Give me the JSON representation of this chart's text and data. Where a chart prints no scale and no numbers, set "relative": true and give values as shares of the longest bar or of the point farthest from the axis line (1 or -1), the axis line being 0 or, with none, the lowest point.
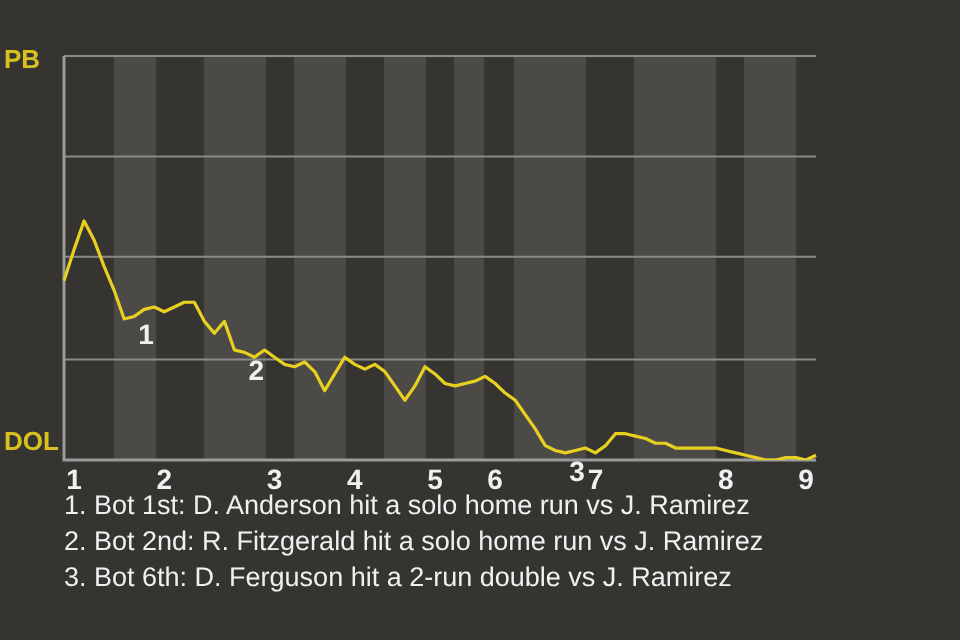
{
  "chart_data": {
    "type": "line",
    "relative": true,
    "categories": [
      null,
      "1",
      null,
      null,
      null,
      null,
      null,
      null,
      null,
      null,
      "2",
      null,
      null,
      null,
      null,
      null,
      null,
      null,
      null,
      null,
      null,
      "3",
      null,
      null,
      null,
      null,
      null,
      null,
      null,
      "4",
      null,
      null,
      null,
      null,
      null,
      null,
      null,
      "5",
      null,
      null,
      null,
      null,
      null,
      "6",
      null,
      null,
      null,
      null,
      null,
      null,
      null,
      null,
      null,
      "7",
      null,
      null,
      null,
      null,
      null,
      null,
      null,
      null,
      null,
      null,
      null,
      null,
      "8",
      null,
      null,
      null,
      null,
      null,
      null,
      null,
      "9",
      null
    ],
    "series": [
      {
        "color": "#e8d020",
        "values": [
          0.75,
          0.88,
          1,
          0.92,
          0.81,
          0.71,
          0.59,
          0.6,
          0.63,
          0.64,
          0.62,
          0.64,
          0.66,
          0.66,
          0.58,
          0.53,
          0.58,
          0.46,
          0.45,
          0.43,
          0.46,
          0.43,
          0.4,
          0.39,
          0.41,
          0.37,
          0.29,
          0.36,
          0.43,
          0.4,
          0.38,
          0.4,
          0.37,
          0.31,
          0.25,
          0.31,
          0.39,
          0.36,
          0.32,
          0.31,
          0.32,
          0.33,
          0.35,
          0.32,
          0.28,
          0.25,
          0.19,
          0.13,
          0.06,
          0.04,
          0.03,
          0.04,
          0.05,
          0.03,
          0.06,
          0.11,
          0.11,
          0.1,
          0.09,
          0.07,
          0.07,
          0.05,
          0.05,
          0.05,
          0.05,
          0.05,
          0.04,
          0.03,
          0.02,
          0.01,
          0,
          0,
          0.01,
          0.01,
          0,
          0.02
        ]
      }
    ],
    "ref_lines": [
      {
        "axis": "y",
        "value": 0.42,
        "color": "#8a8a8a"
      },
      {
        "axis": "y",
        "value": 0.85,
        "color": "#8a8a8a"
      },
      {
        "axis": "y",
        "value": 1.27,
        "color": "#8a8a8a"
      },
      {
        "axis": "y",
        "value": 1.69,
        "color": "#8a8a8a"
      }
    ],
    "legend": false,
    "marker": "none",
    "line_style": "solid",
    "annotations": [
      "PB",
      "DOL",
      {
        "text": "1",
        "y": 0.6
      },
      {
        "text": "2",
        "y": 0.45
      },
      {
        "text": "3",
        "y": 0.03
      },
      "1. Bot 1st: D. Anderson hit a solo home run vs J. Ramirez",
      "2. Bot 2nd: R. Fitzgerald hit a solo home run vs J. Ramirez",
      "3. Bot 6th: D. Ferguson hit a 2-run double vs J. Ramirez"
    ]
  }
}
